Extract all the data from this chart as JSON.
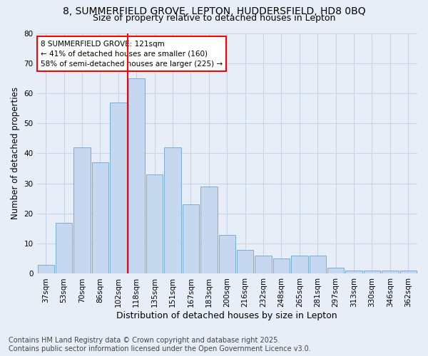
{
  "title1": "8, SUMMERFIELD GROVE, LEPTON, HUDDERSFIELD, HD8 0BQ",
  "title2": "Size of property relative to detached houses in Lepton",
  "xlabel": "Distribution of detached houses by size in Lepton",
  "ylabel": "Number of detached properties",
  "categories": [
    "37sqm",
    "53sqm",
    "70sqm",
    "86sqm",
    "102sqm",
    "118sqm",
    "135sqm",
    "151sqm",
    "167sqm",
    "183sqm",
    "200sqm",
    "216sqm",
    "232sqm",
    "248sqm",
    "265sqm",
    "281sqm",
    "297sqm",
    "313sqm",
    "330sqm",
    "346sqm",
    "362sqm"
  ],
  "values": [
    3,
    17,
    42,
    37,
    57,
    65,
    33,
    42,
    23,
    29,
    13,
    8,
    6,
    5,
    6,
    6,
    2,
    1,
    1,
    1,
    1
  ],
  "bar_color": "#c5d8f0",
  "bar_edge_color": "#7aadd4",
  "vline_x_index": 4.5,
  "vline_color": "red",
  "annotation_text": "8 SUMMERFIELD GROVE: 121sqm\n← 41% of detached houses are smaller (160)\n58% of semi-detached houses are larger (225) →",
  "annotation_box_color": "white",
  "annotation_box_edge": "red",
  "ylim": [
    0,
    80
  ],
  "yticks": [
    0,
    10,
    20,
    30,
    40,
    50,
    60,
    70,
    80
  ],
  "grid_color": "#c8d4e8",
  "bg_color": "#e8eef8",
  "footer_text": "Contains HM Land Registry data © Crown copyright and database right 2025.\nContains public sector information licensed under the Open Government Licence v3.0.",
  "title1_fontsize": 10,
  "title2_fontsize": 9,
  "xlabel_fontsize": 9,
  "ylabel_fontsize": 8.5,
  "tick_fontsize": 7.5,
  "annotation_fontsize": 7.5,
  "footer_fontsize": 7
}
